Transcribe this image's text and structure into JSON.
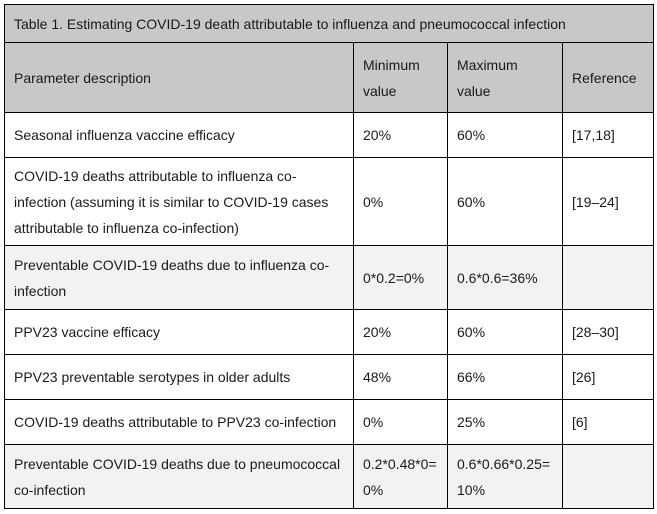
{
  "table": {
    "caption": "Table 1. Estimating COVID-19 death attributable to influenza and pneumococcal infection",
    "headers": {
      "description": "Parameter description",
      "min_line1": "Minimum",
      "min_line2": "value",
      "max_line1": "Maximum",
      "max_line2": "value",
      "reference": "Reference"
    },
    "rows": [
      {
        "description": "Seasonal influenza vaccine efficacy",
        "min": "20%",
        "max": "60%",
        "reference": "[17,18]"
      },
      {
        "description": "COVID-19 deaths attributable to influenza co-infection (assuming it is similar to COVID-19 cases attributable to influenza co-infection)",
        "min": "0%",
        "max": "60%",
        "reference": "[19–24]"
      },
      {
        "description": "Preventable COVID-19 deaths due to influenza co-infection",
        "min": "0*0.2=0%",
        "max": "0.6*0.6=36%",
        "reference": ""
      },
      {
        "description": "PPV23 vaccine efficacy",
        "min": "20%",
        "max": "60%",
        "reference": "[28–30]"
      },
      {
        "description": "PPV23 preventable serotypes in older adults",
        "min": "48%",
        "max": "66%",
        "reference": "[26]"
      },
      {
        "description": "COVID-19 deaths attributable to PPV23 co-infection",
        "min": "0%",
        "max": "25%",
        "reference": "[6]"
      },
      {
        "description": "Preventable COVID-19 deaths due to pneumococcal co-infection",
        "min_line1": "0.2*0.48*0=",
        "min_line2": "0%",
        "max_line1": "0.6*0.66*0.25=",
        "max_line2": "10%",
        "reference": ""
      }
    ]
  },
  "colors": {
    "header_bg": "#c8c8c8",
    "shaded_row_bg": "#f2f2f2",
    "border": "#000000"
  }
}
